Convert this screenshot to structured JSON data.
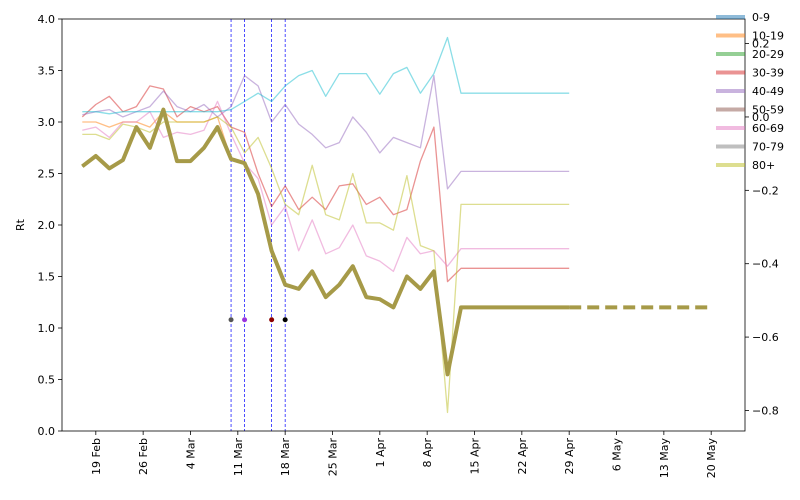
{
  "chart_data": {
    "type": "line",
    "ylabel": "Rt",
    "x": [
      "02-17",
      "02-19",
      "02-21",
      "02-23",
      "02-25",
      "02-27",
      "02-29",
      "03-02",
      "03-04",
      "03-06",
      "03-08",
      "03-10",
      "03-12",
      "03-14",
      "03-16",
      "03-18",
      "03-20",
      "03-22",
      "03-24",
      "03-26",
      "03-28",
      "03-30",
      "04-01",
      "04-03",
      "04-05",
      "04-07",
      "04-09",
      "04-11",
      "04-13",
      "04-15",
      "04-17",
      "04-19",
      "04-21",
      "04-23",
      "04-25",
      "04-27",
      "04-29"
    ],
    "xlim": [
      "02-14",
      "05-25"
    ],
    "xticks": [
      {
        "value": "02-19",
        "label": "19 Feb"
      },
      {
        "value": "02-26",
        "label": "26 Feb"
      },
      {
        "value": "03-04",
        "label": "4 Mar"
      },
      {
        "value": "03-11",
        "label": "11 Mar"
      },
      {
        "value": "03-18",
        "label": "18 Mar"
      },
      {
        "value": "03-25",
        "label": "25 Mar"
      },
      {
        "value": "04-01",
        "label": "1 Apr"
      },
      {
        "value": "04-08",
        "label": "8 Apr"
      },
      {
        "value": "04-15",
        "label": "15 Apr"
      },
      {
        "value": "04-22",
        "label": "22 Apr"
      },
      {
        "value": "04-29",
        "label": "29 Apr"
      },
      {
        "value": "05-06",
        "label": "6 May"
      },
      {
        "value": "05-13",
        "label": "13 May"
      },
      {
        "value": "05-20",
        "label": "20 May"
      }
    ],
    "ylim": [
      0,
      4
    ],
    "yticks": [
      {
        "value": 0,
        "label": "0.0"
      },
      0.5,
      {
        "value": 1,
        "label": "1.0"
      },
      1.5,
      {
        "value": 2,
        "label": "2.0"
      },
      2.5,
      {
        "value": 3,
        "label": "3.0"
      },
      3.5,
      {
        "value": 4,
        "label": "4.0"
      }
    ],
    "y2lim": [
      -0.856,
      0.267
    ],
    "y2ticks": [
      0.2,
      {
        "value": 0,
        "label": "0.0"
      },
      {
        "value": -0.2,
        "label": "−0.2"
      },
      {
        "value": -0.4,
        "label": "−0.4"
      },
      {
        "value": -0.6,
        "label": "−0.6"
      },
      {
        "value": -0.8,
        "label": "−0.8"
      }
    ],
    "legend": "upper right",
    "series": [
      {
        "name": "0-9",
        "color": "#1f77b4",
        "values": [
          2.57,
          2.67,
          2.55,
          2.63,
          2.95,
          2.75,
          3.12,
          2.62,
          2.62,
          2.75,
          2.95,
          2.64,
          2.6,
          2.3,
          1.75,
          1.42,
          1.38,
          1.55,
          1.3,
          1.42,
          1.6,
          1.3,
          1.28,
          1.2,
          1.5,
          1.38,
          1.55,
          0.55,
          1.2,
          1.2,
          1.2,
          1.2,
          1.2,
          1.2,
          1.2,
          1.2,
          1.2
        ]
      },
      {
        "name": "10-19",
        "color": "#ff7f0e",
        "values": [
          3.0,
          3.0,
          2.95,
          3.0,
          3.0,
          2.95,
          3.1,
          3.0,
          3.0,
          3.0,
          3.05,
          2.64,
          2.6,
          2.3,
          1.75,
          1.42,
          1.38,
          1.55,
          1.3,
          1.42,
          1.6,
          1.3,
          1.28,
          1.2,
          1.5,
          1.38,
          1.55,
          0.55,
          1.2,
          1.2,
          1.2,
          1.2,
          1.2,
          1.2,
          1.2,
          1.2,
          1.2
        ]
      },
      {
        "name": "20-29",
        "color": "#2ca02c",
        "values": [
          2.57,
          2.67,
          2.55,
          2.63,
          2.95,
          2.75,
          3.12,
          2.62,
          2.62,
          2.75,
          2.95,
          2.64,
          2.6,
          2.3,
          1.75,
          1.42,
          1.38,
          1.55,
          1.3,
          1.42,
          1.6,
          1.3,
          1.28,
          1.2,
          1.5,
          1.38,
          1.55,
          0.55,
          1.2,
          1.2,
          1.2,
          1.2,
          1.2,
          1.2,
          1.2,
          1.2,
          1.2
        ]
      },
      {
        "name": "30-39",
        "color": "#d62728",
        "values": [
          3.05,
          3.17,
          3.25,
          3.1,
          3.15,
          3.35,
          3.32,
          3.05,
          3.15,
          3.1,
          3.15,
          2.95,
          2.9,
          2.5,
          2.18,
          2.38,
          2.15,
          2.27,
          2.15,
          2.38,
          2.4,
          2.2,
          2.27,
          2.1,
          2.15,
          2.62,
          2.95,
          1.45,
          1.58,
          1.58,
          1.58,
          1.58,
          1.58,
          1.58,
          1.58,
          1.58,
          1.58
        ]
      },
      {
        "name": "40-49",
        "color": "#9467bd",
        "values": [
          3.07,
          3.1,
          3.12,
          3.05,
          3.1,
          3.15,
          3.3,
          3.15,
          3.1,
          3.17,
          3.05,
          3.15,
          3.45,
          3.35,
          3.0,
          3.17,
          2.98,
          2.88,
          2.75,
          2.8,
          3.05,
          2.9,
          2.7,
          2.85,
          2.8,
          2.75,
          3.45,
          2.35,
          2.52,
          2.52,
          2.52,
          2.52,
          2.52,
          2.52,
          2.52,
          2.52,
          2.52
        ]
      },
      {
        "name": "50-59",
        "color": "#8c564b",
        "values": [
          2.57,
          2.67,
          2.55,
          2.63,
          2.95,
          2.75,
          3.12,
          2.62,
          2.62,
          2.75,
          2.95,
          2.64,
          2.6,
          2.3,
          1.75,
          1.42,
          1.38,
          1.55,
          1.3,
          1.42,
          1.6,
          1.3,
          1.28,
          1.2,
          1.5,
          1.38,
          1.55,
          0.55,
          1.2,
          1.2,
          1.2,
          1.2,
          1.2,
          1.2,
          1.2,
          1.2,
          1.2
        ]
      },
      {
        "name": "60-69",
        "color": "#e377c2",
        "values": [
          2.92,
          2.95,
          2.85,
          3.0,
          3.0,
          3.1,
          2.85,
          2.9,
          2.88,
          2.92,
          3.2,
          2.88,
          2.6,
          2.45,
          2.0,
          2.18,
          1.75,
          2.05,
          1.72,
          1.78,
          2.0,
          1.7,
          1.65,
          1.55,
          1.88,
          1.72,
          1.75,
          1.6,
          1.77,
          1.77,
          1.77,
          1.77,
          1.77,
          1.77,
          1.77,
          1.77,
          1.77
        ]
      },
      {
        "name": "70-79",
        "color": "#7f7f7f",
        "values": [
          2.57,
          2.67,
          2.55,
          2.63,
          2.95,
          2.75,
          3.12,
          2.62,
          2.62,
          2.75,
          2.95,
          2.64,
          2.6,
          2.3,
          1.75,
          1.42,
          1.38,
          1.55,
          1.3,
          1.42,
          1.6,
          1.3,
          1.28,
          1.2,
          1.5,
          1.38,
          1.55,
          0.55,
          1.2,
          1.2,
          1.2,
          1.2,
          1.2,
          1.2,
          1.2,
          1.2,
          1.2
        ]
      },
      {
        "name": "80+",
        "color": "#bcbd22",
        "values": [
          2.88,
          2.88,
          2.83,
          2.98,
          2.95,
          2.9,
          3.0,
          3.0,
          3.0,
          3.0,
          3.05,
          2.95,
          2.7,
          2.85,
          2.55,
          2.2,
          2.1,
          2.58,
          2.1,
          2.05,
          2.5,
          2.02,
          2.02,
          1.95,
          2.48,
          1.8,
          1.75,
          0.18,
          2.2,
          2.2,
          2.2,
          2.2,
          2.2,
          2.2,
          2.2,
          2.2,
          2.2
        ]
      },
      {
        "color": "#17becf",
        "values": [
          3.1,
          3.1,
          3.08,
          3.1,
          3.1,
          3.1,
          3.1,
          3.1,
          3.1,
          3.1,
          3.1,
          3.12,
          3.2,
          3.28,
          3.2,
          3.35,
          3.45,
          3.5,
          3.25,
          3.47,
          3.47,
          3.47,
          3.27,
          3.47,
          3.53,
          3.28,
          3.47,
          3.82,
          3.28,
          3.28,
          3.28,
          3.28,
          3.28,
          3.28,
          3.28,
          3.28,
          3.28
        ]
      },
      {
        "color": "#a69a48",
        "values": [
          2.57,
          2.67,
          2.55,
          2.63,
          2.95,
          2.75,
          3.12,
          2.62,
          2.62,
          2.75,
          2.95,
          2.64,
          2.6,
          2.3,
          1.75,
          1.42,
          1.38,
          1.55,
          1.3,
          1.42,
          1.6,
          1.3,
          1.28,
          1.2,
          1.5,
          1.38,
          1.55,
          0.55,
          1.2,
          1.2,
          1.2,
          1.2,
          1.2,
          1.2,
          1.2,
          1.2,
          1.2
        ]
      },
      {
        "color": "#a69a48",
        "linestyle": "dashed",
        "x": [
          "04-29",
          "05-20"
        ],
        "values": [
          1.2,
          1.2
        ]
      }
    ],
    "vlines": {
      "color": "#0000ff",
      "x": [
        "03-10",
        "03-12",
        "03-16",
        "03-18"
      ]
    },
    "markers": [
      {
        "x": "03-10",
        "y": 1.08,
        "color": "#555555"
      },
      {
        "x": "03-12",
        "y": 1.08,
        "color": "#9933dd"
      },
      {
        "x": "03-16",
        "y": 1.08,
        "color": "#8b0000"
      },
      {
        "x": "03-18",
        "y": 1.08,
        "color": "#000000"
      }
    ]
  }
}
